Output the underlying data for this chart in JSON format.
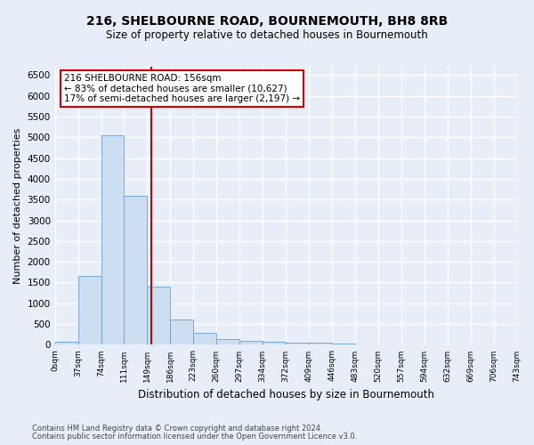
{
  "title": "216, SHELBOURNE ROAD, BOURNEMOUTH, BH8 8RB",
  "subtitle": "Size of property relative to detached houses in Bournemouth",
  "xlabel": "Distribution of detached houses by size in Bournemouth",
  "ylabel": "Number of detached properties",
  "footnote1": "Contains HM Land Registry data © Crown copyright and database right 2024.",
  "footnote2": "Contains public sector information licensed under the Open Government Licence v3.0.",
  "bin_labels": [
    "0sqm",
    "37sqm",
    "74sqm",
    "111sqm",
    "149sqm",
    "186sqm",
    "223sqm",
    "260sqm",
    "297sqm",
    "334sqm",
    "372sqm",
    "409sqm",
    "446sqm",
    "483sqm",
    "520sqm",
    "557sqm",
    "594sqm",
    "632sqm",
    "669sqm",
    "706sqm",
    "743sqm"
  ],
  "bar_values": [
    75,
    1650,
    5050,
    3600,
    1400,
    620,
    290,
    145,
    100,
    75,
    55,
    60,
    35,
    0,
    0,
    0,
    0,
    0,
    0,
    0
  ],
  "bar_color": "#ccdff2",
  "bar_edge_color": "#6a9fd0",
  "background_color": "#e8eef8",
  "grid_color": "#ffffff",
  "vline_color": "#cc0000",
  "annotation_text": "216 SHELBOURNE ROAD: 156sqm\n← 83% of detached houses are smaller (10,627)\n17% of semi-detached houses are larger (2,197) →",
  "annotation_box_color": "#cc0000",
  "ylim": [
    0,
    6700
  ],
  "yticks": [
    0,
    500,
    1000,
    1500,
    2000,
    2500,
    3000,
    3500,
    4000,
    4500,
    5000,
    5500,
    6000,
    6500
  ]
}
